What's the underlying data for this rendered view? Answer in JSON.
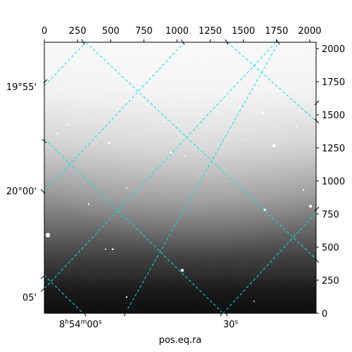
{
  "chart_data": {
    "type": "heatmap",
    "title": "",
    "xlabel": "pos.eq.ra",
    "ylabel": "",
    "pixel_axes": {
      "x_range": [
        0,
        2048
      ],
      "y_range": [
        0,
        2048
      ],
      "top_ticks": [
        0,
        250,
        500,
        750,
        1000,
        1250,
        1500,
        1750,
        2000
      ],
      "right_ticks": [
        0,
        250,
        500,
        750,
        1000,
        1250,
        1500,
        1750,
        2000
      ]
    },
    "world_axes": {
      "ra_ticks": [
        {
          "label": "8h54m00s",
          "main": "8",
          "sup1": "h",
          "mid": "54",
          "sup2": "m",
          "end": "00",
          "sup3": "s"
        },
        {
          "label": "30s",
          "main": "30",
          "sup1": "s"
        }
      ],
      "dec_ticks": [
        "19°55'",
        "20°00'",
        "05'"
      ]
    },
    "grid": true,
    "grid_color": "#00e5e5",
    "colormap": "gray",
    "image_description_note": ""
  }
}
